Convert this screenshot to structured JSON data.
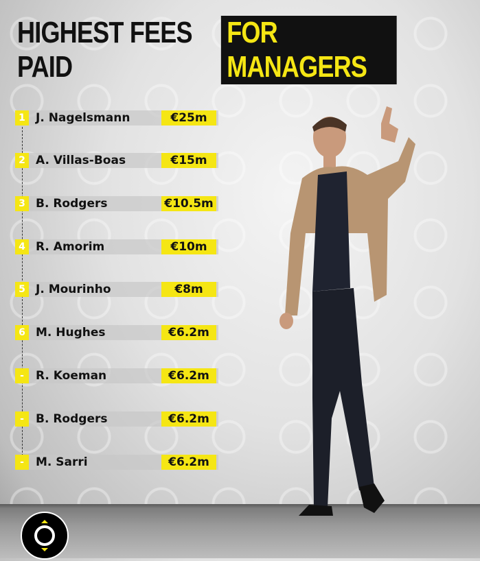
{
  "title": {
    "part1": "HIGHEST FEES PAID",
    "part2": "FOR MANAGERS"
  },
  "colors": {
    "accent": "#f5e614",
    "dark": "#111111"
  },
  "items": [
    {
      "rank": "1",
      "name": "J. Nagelsmann",
      "fee": "€25m"
    },
    {
      "rank": "2",
      "name": "A. Villas-Boas",
      "fee": "€15m"
    },
    {
      "rank": "3",
      "name": "B. Rodgers",
      "fee": "€10.5m"
    },
    {
      "rank": "4",
      "name": "R. Amorim",
      "fee": "€10m"
    },
    {
      "rank": "5",
      "name": "J. Mourinho",
      "fee": "€8m"
    },
    {
      "rank": "6",
      "name": "M. Hughes",
      "fee": "€6.2m"
    },
    {
      "rank": "-",
      "name": "R. Koeman",
      "fee": "€6.2m"
    },
    {
      "rank": "-",
      "name": "B. Rodgers",
      "fee": "€6.2m"
    },
    {
      "rank": "-",
      "name": "M. Sarri",
      "fee": "€6.2m"
    }
  ],
  "logo_icon": "circle-logo-icon",
  "photo": "manager-thumbs-up-photo"
}
